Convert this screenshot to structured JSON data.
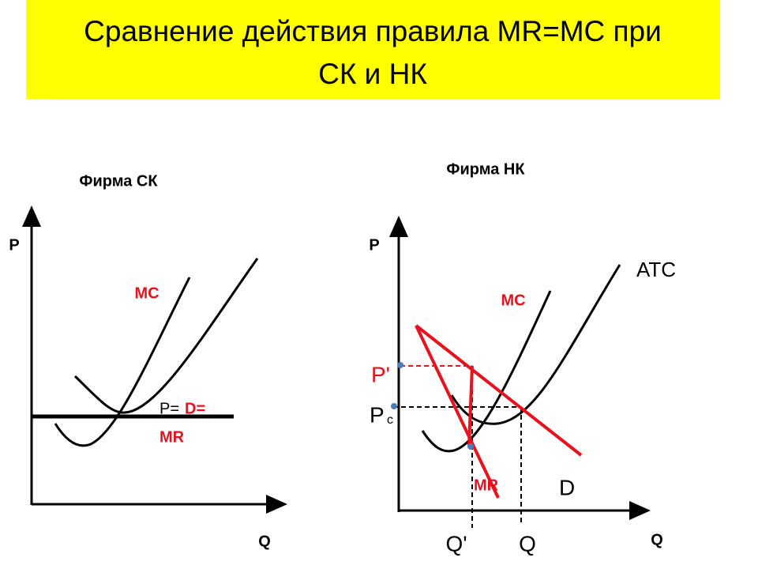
{
  "title": {
    "lines": [
      "Сравнение действия правила MR=MC при",
      "СК и НК"
    ]
  },
  "left_graph": {
    "title": "Фирма СК",
    "y_axis": "P",
    "x_axis": "Q",
    "labels": {
      "mc": "MC",
      "price_prefix": "P=",
      "demand": "D=",
      "mr": "MR"
    }
  },
  "right_graph": {
    "title": "Фирма НК",
    "y_axis": "P",
    "x_axis": "Q",
    "labels": {
      "atc": "ATC",
      "mc": "MC",
      "p_prime": "P'",
      "pc_p": "P",
      "pc_sub": "c",
      "mr": "MR",
      "d": "D",
      "q_prime": "Q'",
      "q": "Q"
    }
  }
}
